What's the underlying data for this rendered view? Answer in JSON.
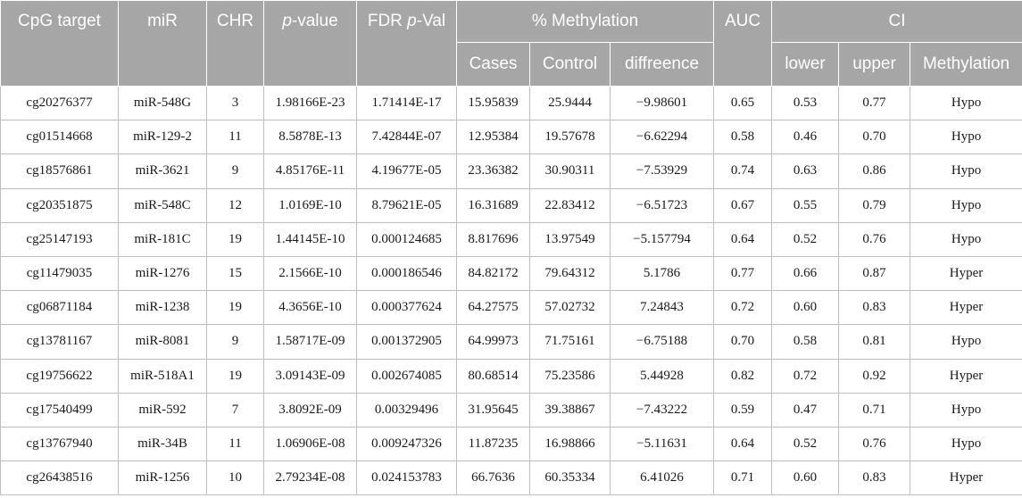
{
  "header": {
    "cpg_target": "CpG target",
    "mir": "miR",
    "chr": "CHR",
    "pvalue_italic": "p",
    "pvalue_rest": "-value",
    "fdr_prefix": "FDR ",
    "fdr_italic": "p",
    "fdr_rest": "-Val",
    "methylation_pct": "% Methylation",
    "auc": "AUC",
    "ci": "CI",
    "cases": "Cases",
    "control": "Control",
    "difference": "diffreence",
    "lower": "lower",
    "upper": "upper",
    "methylation": "Methylation"
  },
  "rows": [
    [
      "cg20276377",
      "miR-548G",
      "3",
      "1.98166E-23",
      "1.71414E-17",
      "15.95839",
      "25.9444",
      "−9.98601",
      "0.65",
      "0.53",
      "0.77",
      "Hypo"
    ],
    [
      "cg01514668",
      "miR-129-2",
      "11",
      "8.5878E-13",
      "7.42844E-07",
      "12.95384",
      "19.57678",
      "−6.62294",
      "0.58",
      "0.46",
      "0.70",
      "Hypo"
    ],
    [
      "cg18576861",
      "miR-3621",
      "9",
      "4.85176E-11",
      "4.19677E-05",
      "23.36382",
      "30.90311",
      "−7.53929",
      "0.74",
      "0.63",
      "0.86",
      "Hypo"
    ],
    [
      "cg20351875",
      "miR-548C",
      "12",
      "1.0169E-10",
      "8.79621E-05",
      "16.31689",
      "22.83412",
      "−6.51723",
      "0.67",
      "0.55",
      "0.79",
      "Hypo"
    ],
    [
      "cg25147193",
      "miR-181C",
      "19",
      "1.44145E-10",
      "0.000124685",
      "8.817696",
      "13.97549",
      "−5.157794",
      "0.64",
      "0.52",
      "0.76",
      "Hypo"
    ],
    [
      "cg11479035",
      "miR-1276",
      "15",
      "2.1566E-10",
      "0.000186546",
      "84.82172",
      "79.64312",
      "5.1786",
      "0.77",
      "0.66",
      "0.87",
      "Hyper"
    ],
    [
      "cg06871184",
      "miR-1238",
      "19",
      "4.3656E-10",
      "0.000377624",
      "64.27575",
      "57.02732",
      "7.24843",
      "0.72",
      "0.60",
      "0.83",
      "Hyper"
    ],
    [
      "cg13781167",
      "miR-8081",
      "9",
      "1.58717E-09",
      "0.001372905",
      "64.99973",
      "71.75161",
      "−6.75188",
      "0.70",
      "0.58",
      "0.81",
      "Hypo"
    ],
    [
      "cg19756622",
      "miR-518A1",
      "19",
      "3.09143E-09",
      "0.002674085",
      "80.68514",
      "75.23586",
      "5.44928",
      "0.82",
      "0.72",
      "0.92",
      "Hyper"
    ],
    [
      "cg17540499",
      "miR-592",
      "7",
      "3.8092E-09",
      "0.00329496",
      "31.95645",
      "39.38867",
      "−7.43222",
      "0.59",
      "0.47",
      "0.71",
      "Hypo"
    ],
    [
      "cg13767940",
      "miR-34B",
      "11",
      "1.06906E-08",
      "0.009247326",
      "11.87235",
      "16.98866",
      "−5.11631",
      "0.64",
      "0.52",
      "0.76",
      "Hypo"
    ],
    [
      "cg26438516",
      "miR-1256",
      "10",
      "2.79234E-08",
      "0.024153783",
      "66.7636",
      "60.35334",
      "6.41026",
      "0.71",
      "0.60",
      "0.83",
      "Hyper"
    ]
  ]
}
